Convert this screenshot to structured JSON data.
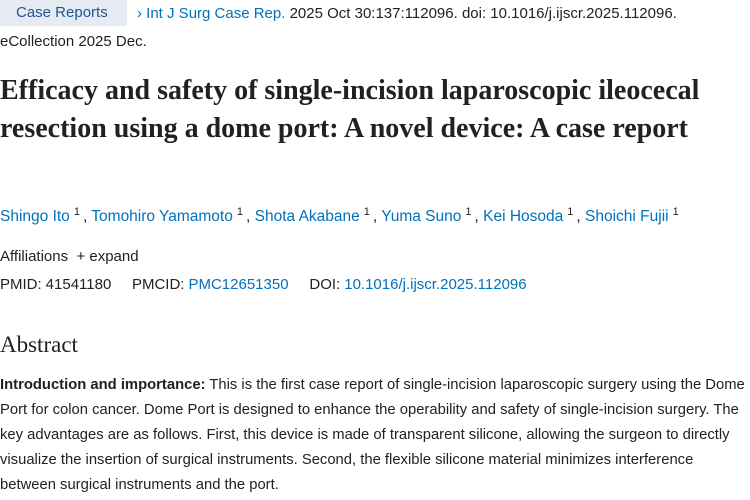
{
  "header": {
    "badge": "Case Reports",
    "journal": "Int J Surg Case Rep.",
    "citation": "2025 Oct 30:137:112096. doi: 10.1016/j.ijscr.2025.112096.",
    "ecollection": "eCollection 2025 Dec."
  },
  "title": "Efficacy and safety of single-incision laparoscopic ileocecal resection using a dome port: A novel device: A case report",
  "authors": [
    {
      "name": "Shingo Ito",
      "sup": "1"
    },
    {
      "name": "Tomohiro Yamamoto",
      "sup": "1"
    },
    {
      "name": "Shota Akabane",
      "sup": "1"
    },
    {
      "name": "Yuma Suno",
      "sup": "1"
    },
    {
      "name": "Kei Hosoda",
      "sup": "1"
    },
    {
      "name": "Shoichi Fujii",
      "sup": "1"
    }
  ],
  "affiliations": {
    "label": "Affiliations",
    "expand": "expand"
  },
  "ids": {
    "pmid_label": "PMID:",
    "pmid": "41541180",
    "pmcid_label": "PMCID:",
    "pmcid": "PMC12651350",
    "doi_label": "DOI:",
    "doi": "10.1016/j.ijscr.2025.112096"
  },
  "abstract": {
    "heading": "Abstract",
    "section_label": "Introduction and importance:",
    "text": "This is the first case report of single-incision laparoscopic surgery using the Dome Port for colon cancer. Dome Port is designed to enhance the operability and safety of single-incision surgery. The key advantages are as follows. First, this device is made of transparent silicone, allowing the surgeon to directly visualize the insertion of surgical instruments. Second, the flexible silicone material minimizes interference between surgical instruments and the port."
  }
}
